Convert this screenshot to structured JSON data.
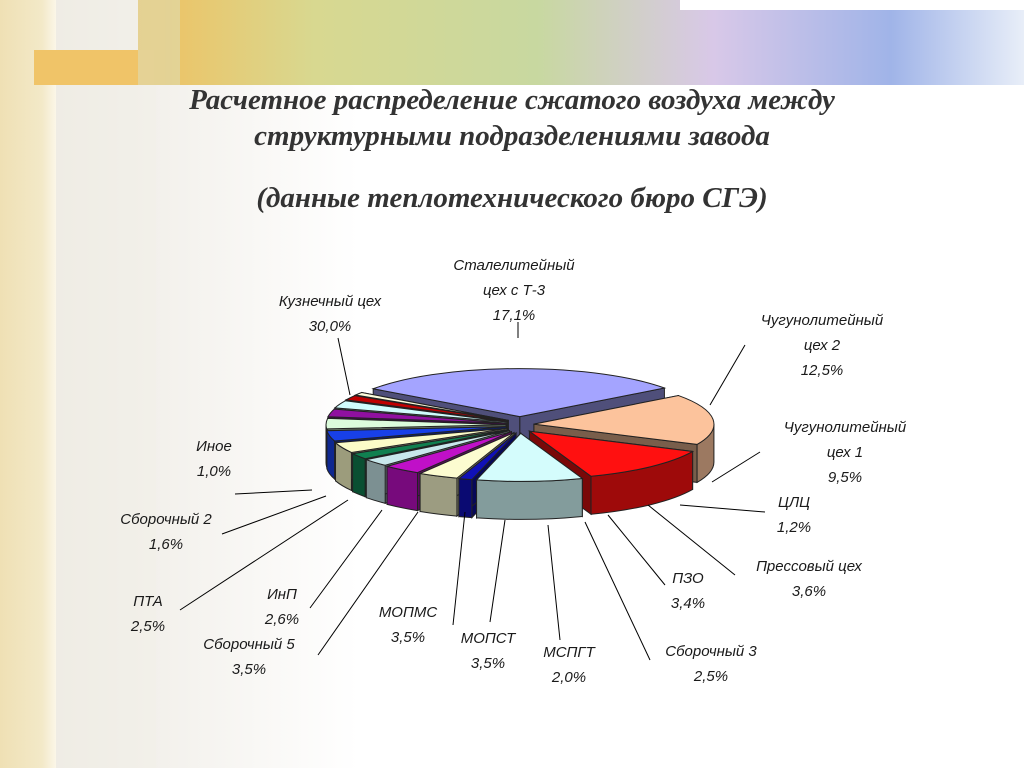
{
  "slide": {
    "title_line1": "Расчетное распределение сжатого воздуха между",
    "title_line2": "структурными подразделениями завода",
    "subtitle": "(данные теплотехнического бюро СГЭ)"
  },
  "chart_data": {
    "type": "pie",
    "style": "3d-exploded",
    "title": "",
    "legend": "none",
    "data_labels": "category and percentage",
    "slices": [
      {
        "name": "Кузнечный цех",
        "value": 30.0,
        "label": "30,0%",
        "color": "#a4a4ff"
      },
      {
        "name": "Сталелитейный цех с Т-3",
        "value": 17.1,
        "label": "17,1%",
        "color": "#fcc39c"
      },
      {
        "name": "Чугунолитейный цех 2",
        "value": 12.5,
        "label": "12,5%",
        "color": "#ff1010"
      },
      {
        "name": "Чугунолитейный цех 1",
        "value": 9.5,
        "label": "9,5%",
        "color": "#d4fcfc"
      },
      {
        "name": "ЦЛЦ",
        "value": 1.2,
        "label": "1,2%",
        "color": "#1010b8"
      },
      {
        "name": "Прессовый цех",
        "value": 3.6,
        "label": "3,6%",
        "color": "#fcfcd0"
      },
      {
        "name": "ПЗО",
        "value": 3.4,
        "label": "3,4%",
        "color": "#c010c8"
      },
      {
        "name": "Сборочный 3",
        "value": 2.5,
        "label": "2,5%",
        "color": "#c8e8ec"
      },
      {
        "name": "МСПГТ",
        "value": 2.0,
        "label": "2,0%",
        "color": "#108050"
      },
      {
        "name": "МОПСТ",
        "value": 3.5,
        "label": "3,5%",
        "color": "#fcfcc8"
      },
      {
        "name": "МОПМС",
        "value": 3.5,
        "label": "3,5%",
        "color": "#1840e8"
      },
      {
        "name": "Сборочный 5",
        "value": 3.5,
        "label": "3,5%",
        "color": "#dcfcdc"
      },
      {
        "name": "ИнП",
        "value": 2.6,
        "label": "2,6%",
        "color": "#9010a0"
      },
      {
        "name": "ПТА",
        "value": 2.5,
        "label": "2,5%",
        "color": "#d0fcfc"
      },
      {
        "name": "Сборочный 2",
        "value": 1.6,
        "label": "1,6%",
        "color": "#c00000"
      },
      {
        "name": "Иное",
        "value": 1.0,
        "label": "1,0%",
        "color": "#fcfcdc"
      }
    ]
  }
}
